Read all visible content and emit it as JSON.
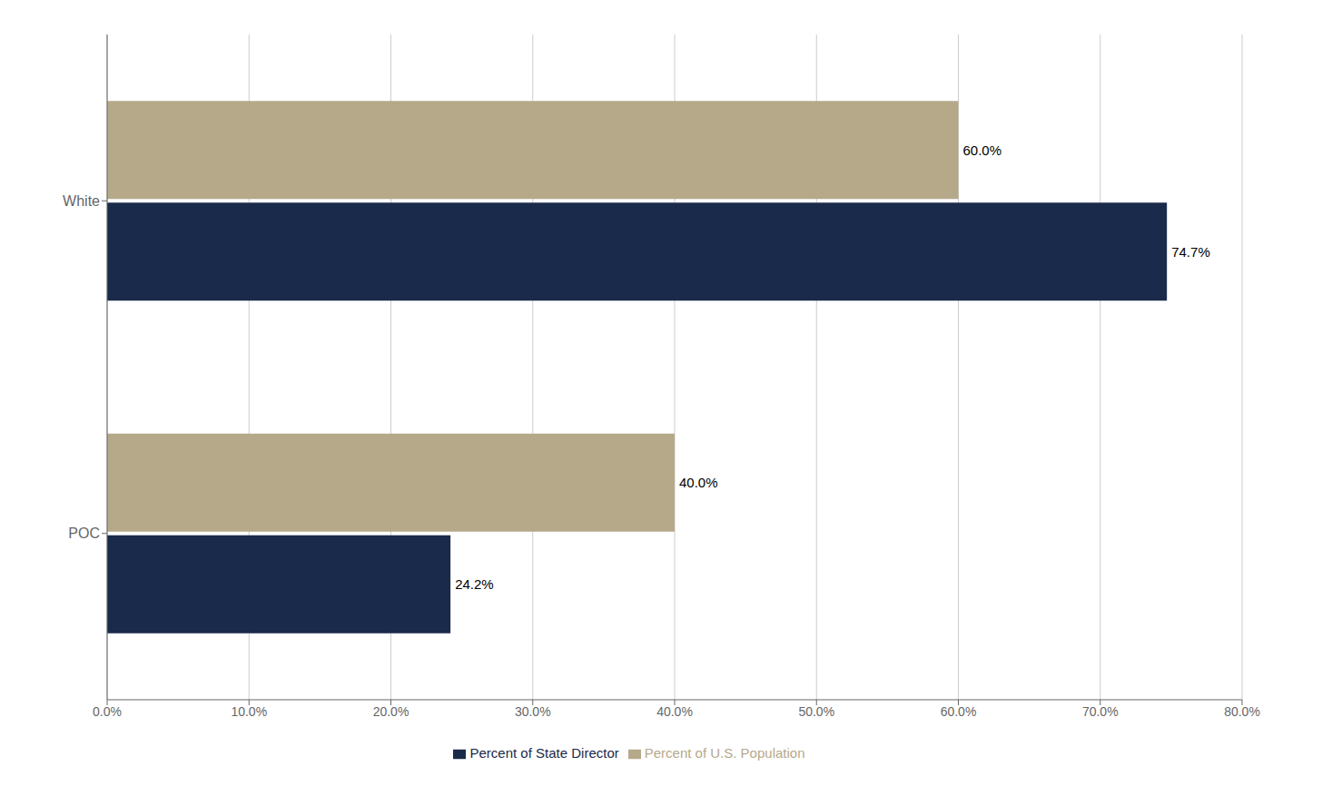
{
  "chart_data": {
    "type": "bar",
    "orientation": "horizontal",
    "categories": [
      "White",
      "POC"
    ],
    "series": [
      {
        "name": "Percent of U.S. Population",
        "color": "#b5a98a",
        "values": [
          60.0,
          40.0
        ],
        "value_labels": [
          "60.0%",
          "40.0%"
        ]
      },
      {
        "name": "Percent of State Director",
        "color": "#1a2a4a",
        "values": [
          74.7,
          24.2
        ],
        "value_labels": [
          "74.7%",
          "24.2%"
        ]
      }
    ],
    "xlim": [
      0,
      80
    ],
    "xticks": [
      {
        "value": 0,
        "label": "0.0%"
      },
      {
        "value": 10,
        "label": "10.0%"
      },
      {
        "value": 20,
        "label": "20.0%"
      },
      {
        "value": 30,
        "label": "30.0%"
      },
      {
        "value": 40,
        "label": "40.0%"
      },
      {
        "value": 50,
        "label": "50.0%"
      },
      {
        "value": 60,
        "label": "60.0%"
      },
      {
        "value": 70,
        "label": "70.0%"
      },
      {
        "value": 80,
        "label": "80.0%"
      }
    ],
    "grid": true,
    "legend": "bottom",
    "data_labels": true
  }
}
